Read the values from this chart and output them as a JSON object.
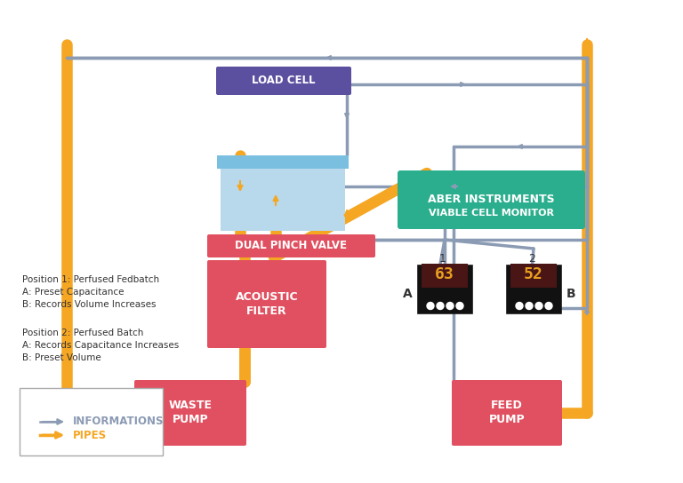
{
  "fig_width": 7.68,
  "fig_height": 5.44,
  "bg_color": "#ffffff",
  "border_color": "#cccccc",
  "pipe_color": "#F5A623",
  "info_color": "#8B9BB4",
  "red_box_color": "#E05060",
  "red_box_text": "#ffffff",
  "green_box_color": "#2BAE8E",
  "green_box_text": "#ffffff",
  "purple_box_color": "#4A4080",
  "purple_box_text": "#ffffff",
  "load_cell_color": "#5B4FA0",
  "bioreactor_liquid": "#B8D9EC",
  "bioreactor_cap": "#7BBFE0",
  "display_bg": "#1a0a00",
  "display_screen": "#5C2020",
  "display_text_color": "#E8A020",
  "text_color": "#333333",
  "waste_pump_label": "WASTE\nPUMP",
  "feed_pump_label": "FEED\nPUMP",
  "acoustic_filter_label": "ACOUSTIC\nFILTER",
  "dual_pinch_label": "DUAL PINCH VALVE",
  "aber_line1": "ABER INSTRUMENTS",
  "aber_line2": "VIABLE CELL MONITOR",
  "load_cell_label": "LOAD CELL",
  "display_a_val": "63",
  "display_b_val": "52",
  "pos1_text": "Position 1: Perfused Fedbatch\nA: Preset Capacitance\nB: Records Volume Increases",
  "pos2_text": "Position 2: Perfused Batch\nA: Records Capacitance Increases\nB: Preset Volume",
  "legend_pipes": "PIPES",
  "legend_info": "INFORMATIONS"
}
